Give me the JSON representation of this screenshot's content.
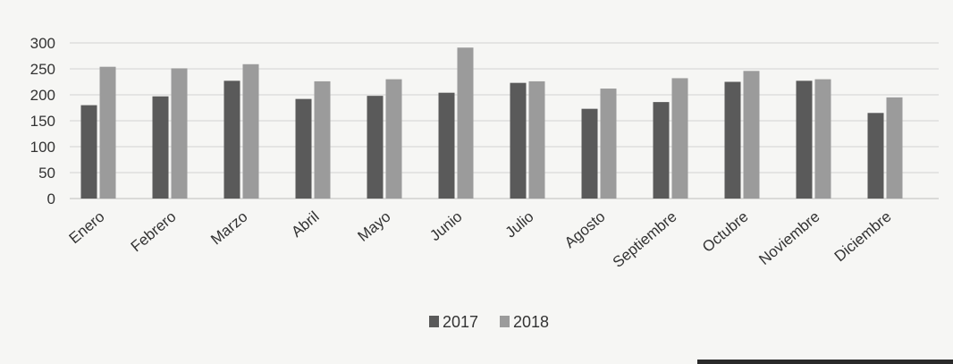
{
  "chart_data": {
    "type": "bar",
    "categories": [
      "Enero",
      "Febrero",
      "Marzo",
      "Abril",
      "Mayo",
      "Junio",
      "Julio",
      "Agosto",
      "Septiembre",
      "Octubre",
      "Noviembre",
      "Diciembre"
    ],
    "series": [
      {
        "name": "2017",
        "color": "#5a5a5a",
        "values": [
          180,
          197,
          227,
          192,
          198,
          204,
          223,
          173,
          186,
          225,
          227,
          165
        ]
      },
      {
        "name": "2018",
        "color": "#9b9b9b",
        "values": [
          254,
          251,
          259,
          226,
          230,
          291,
          226,
          212,
          232,
          246,
          230,
          195
        ]
      }
    ],
    "yticks": [
      "0",
      "50",
      "100",
      "150",
      "200",
      "250",
      "300"
    ],
    "ylim": [
      0,
      300
    ],
    "grid": true,
    "legend": "bottom-center"
  }
}
